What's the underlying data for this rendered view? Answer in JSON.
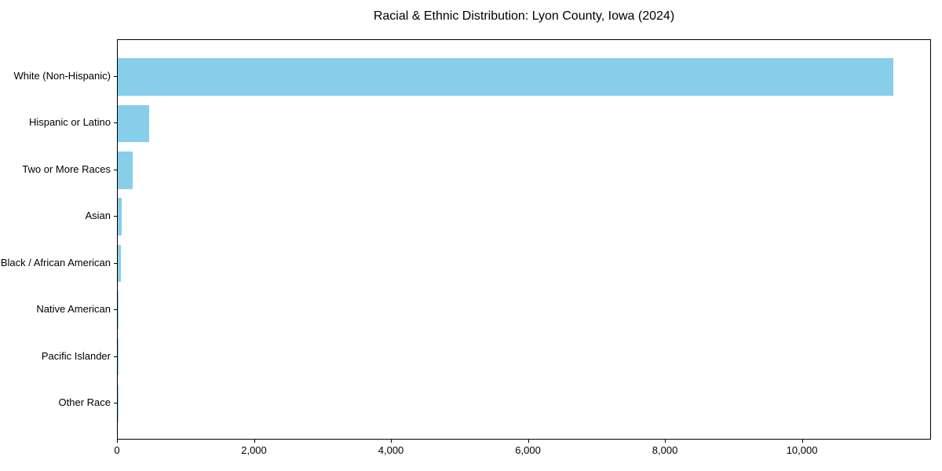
{
  "chart_data": {
    "type": "bar",
    "orientation": "horizontal",
    "title": "Racial & Ethnic Distribution: Lyon County, Iowa (2024)",
    "categories": [
      "White (Non-Hispanic)",
      "Hispanic or Latino",
      "Two or More Races",
      "Asian",
      "Black / African American",
      "Native American",
      "Pacific Islander",
      "Other Race"
    ],
    "values": [
      11318,
      461,
      218,
      62,
      47,
      13,
      4,
      2
    ],
    "xlabel": "",
    "ylabel": "",
    "xlim": [
      0,
      11884
    ],
    "xticks": [
      {
        "value": 0,
        "label": "0"
      },
      {
        "value": 2000,
        "label": "2,000"
      },
      {
        "value": 4000,
        "label": "4,000"
      },
      {
        "value": 6000,
        "label": "6,000"
      },
      {
        "value": 8000,
        "label": "8,000"
      },
      {
        "value": 10000,
        "label": "10,000"
      }
    ],
    "bar_color": "#87CEEB",
    "grid": false,
    "legend": null,
    "background_color": "#ffffff",
    "spine_color": "#000000",
    "text_color": "#000000"
  }
}
